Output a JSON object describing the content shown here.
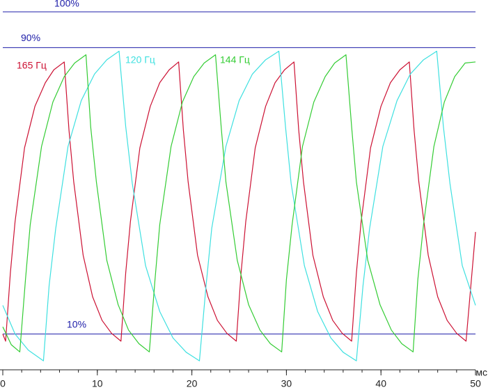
{
  "chart_data": {
    "type": "line",
    "x_label": "мс",
    "xlim": [
      0,
      50
    ],
    "xticks": [
      0,
      10,
      20,
      30,
      40,
      50
    ],
    "xminorticks": [
      0,
      2,
      4,
      6,
      8,
      10,
      12,
      14,
      16,
      18,
      20,
      22,
      24,
      26,
      28,
      30,
      32,
      34,
      36,
      38,
      40,
      42,
      44,
      46,
      48,
      50
    ],
    "ylim": [
      0,
      103.3
    ],
    "reference_lines": [
      {
        "value": 100,
        "label": "100%",
        "color": "#1c1ca8"
      },
      {
        "value": 90,
        "label": "90%",
        "color": "#1c1ca8"
      },
      {
        "value": 10,
        "label": "10%",
        "color": "#1c1ca8"
      }
    ],
    "series": [
      {
        "name": "165 Гц",
        "color": "#cc1133",
        "x": [
          0,
          0.3,
          0.8,
          1.3,
          2.3,
          3.4,
          4.5,
          5.4,
          6.5,
          7.0,
          7.5,
          8.5,
          9.5,
          10.5,
          11.5,
          12.5,
          13.0,
          13.5,
          14.5,
          15.6,
          16.6,
          17.6,
          18.6,
          19.1,
          19.6,
          20.6,
          21.7,
          22.7,
          23.7,
          24.7,
          25.2,
          25.7,
          26.7,
          27.8,
          28.8,
          29.8,
          30.8,
          31.3,
          31.8,
          32.8,
          33.9,
          34.9,
          35.9,
          36.9,
          37.4,
          37.9,
          38.9,
          40.0,
          41.0,
          42.0,
          43.0,
          43.5,
          44.0,
          45.0,
          46.0,
          47.0,
          48.0,
          49.0,
          50
        ],
        "values": [
          10,
          8,
          27.0,
          41.4,
          62.0,
          73.6,
          80.2,
          83.8,
          86,
          67.0,
          52.6,
          32.0,
          20.4,
          13.8,
          10.2,
          8,
          27.0,
          41.4,
          62.0,
          73.6,
          80.2,
          83.8,
          86,
          67.0,
          52.6,
          32.0,
          20.4,
          13.8,
          10.2,
          8,
          27.0,
          41.4,
          62.0,
          73.6,
          80.2,
          83.8,
          86,
          67.0,
          52.6,
          32.0,
          20.4,
          13.8,
          10.2,
          8,
          27.0,
          41.4,
          62.0,
          73.6,
          80.2,
          83.8,
          86,
          67.0,
          52.6,
          32.0,
          20.4,
          13.8,
          10.2,
          8,
          38.5
        ]
      },
      {
        "name": "120 Гц",
        "color": "#3ee0e0",
        "x": [
          0,
          1.3,
          2.7,
          4.3,
          4.9,
          5.6,
          6.9,
          8.3,
          9.7,
          11.0,
          12.3,
          13.0,
          13.7,
          15.1,
          16.6,
          18.0,
          19.4,
          20.8,
          21.5,
          22.1,
          23.6,
          25.0,
          26.4,
          27.8,
          29.2,
          29.9,
          30.5,
          31.9,
          33.3,
          34.7,
          36.0,
          37.4,
          38.1,
          38.8,
          40.2,
          41.7,
          43.1,
          44.5,
          45.9,
          46.6,
          47.3,
          48.6,
          50
        ],
        "values": [
          18,
          10,
          5.5,
          2.5,
          23.5,
          39.5,
          62.4,
          75.2,
          82.6,
          86.6,
          89,
          68.0,
          52.0,
          29.1,
          16.3,
          8.9,
          4.9,
          2.5,
          23.5,
          39.5,
          62.4,
          75.2,
          82.6,
          86.6,
          89,
          68.0,
          52.0,
          29.1,
          16.3,
          8.9,
          4.9,
          2.5,
          23.5,
          39.5,
          62.4,
          75.2,
          82.6,
          86.6,
          89,
          68.0,
          52.0,
          29.1,
          18
        ]
      },
      {
        "name": "144 Гц",
        "color": "#33cc33",
        "x": [
          0,
          0.9,
          1.8,
          2.4,
          2.9,
          4.1,
          5.3,
          6.5,
          7.6,
          8.8,
          9.3,
          9.9,
          11.0,
          12.2,
          13.3,
          14.4,
          15.5,
          16.1,
          16.6,
          17.8,
          19.0,
          20.2,
          21.3,
          22.5,
          23.1,
          23.6,
          24.8,
          26.0,
          27.2,
          28.3,
          29.5,
          30.0,
          30.6,
          31.7,
          32.9,
          34.1,
          35.1,
          36.3,
          36.9,
          37.4,
          38.6,
          39.9,
          41.1,
          42.2,
          43.4,
          43.9,
          44.5,
          45.6,
          46.7,
          47.8,
          48.9,
          50
        ],
        "values": [
          12,
          7,
          5,
          25.2,
          40.5,
          62.4,
          74.8,
          81.9,
          85.7,
          88,
          67.8,
          52.5,
          30.6,
          18.2,
          11.1,
          7.3,
          5,
          25.2,
          40.5,
          62.4,
          74.8,
          81.9,
          85.7,
          88,
          67.8,
          52.5,
          30.6,
          18.2,
          11.1,
          7.3,
          5,
          25.2,
          40.5,
          62.4,
          74.8,
          81.9,
          85.7,
          88,
          67.8,
          52.5,
          30.6,
          18.2,
          11.1,
          7.3,
          5,
          25.2,
          40.5,
          62.4,
          74.8,
          81.9,
          85.7,
          86
        ]
      }
    ]
  }
}
